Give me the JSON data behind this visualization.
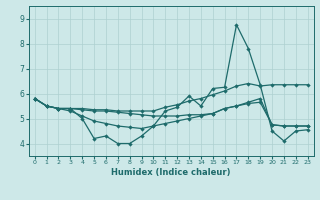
{
  "xlabel": "Humidex (Indice chaleur)",
  "xlim": [
    -0.5,
    23.5
  ],
  "ylim": [
    3.5,
    9.5
  ],
  "yticks": [
    4,
    5,
    6,
    7,
    8,
    9
  ],
  "xticks": [
    0,
    1,
    2,
    3,
    4,
    5,
    6,
    7,
    8,
    9,
    10,
    11,
    12,
    13,
    14,
    15,
    16,
    17,
    18,
    19,
    20,
    21,
    22,
    23
  ],
  "bg_color": "#cde8e8",
  "line_color": "#1e6b6b",
  "grid_color": "#aed0d0",
  "line1_x": [
    0,
    1,
    2,
    3,
    4,
    5,
    6,
    7,
    8,
    9,
    10,
    11,
    12,
    13,
    14,
    15,
    16,
    17,
    18,
    19,
    20,
    21,
    22,
    23
  ],
  "line1_y": [
    5.8,
    5.5,
    5.4,
    5.4,
    5.0,
    4.2,
    4.3,
    4.0,
    4.0,
    4.3,
    4.7,
    5.3,
    5.45,
    5.9,
    5.5,
    6.2,
    6.25,
    8.75,
    7.8,
    6.35,
    4.5,
    4.1,
    4.5,
    4.55
  ],
  "line2_x": [
    0,
    1,
    2,
    3,
    4,
    5,
    6,
    7,
    8,
    9,
    10,
    11,
    12,
    13,
    14,
    15,
    16,
    17,
    18,
    19,
    20,
    21,
    22,
    23
  ],
  "line2_y": [
    5.8,
    5.5,
    5.4,
    5.4,
    5.4,
    5.35,
    5.35,
    5.3,
    5.3,
    5.3,
    5.3,
    5.45,
    5.55,
    5.7,
    5.8,
    5.95,
    6.1,
    6.3,
    6.4,
    6.3,
    6.35,
    6.35,
    6.35,
    6.35
  ],
  "line3_x": [
    0,
    1,
    2,
    3,
    4,
    5,
    6,
    7,
    8,
    9,
    10,
    11,
    12,
    13,
    14,
    15,
    16,
    17,
    18,
    19,
    20,
    21,
    22,
    23
  ],
  "line3_y": [
    5.8,
    5.5,
    5.4,
    5.4,
    5.35,
    5.3,
    5.3,
    5.25,
    5.2,
    5.15,
    5.1,
    5.1,
    5.1,
    5.15,
    5.15,
    5.2,
    5.4,
    5.5,
    5.6,
    5.65,
    4.75,
    4.7,
    4.7,
    4.7
  ],
  "line4_x": [
    0,
    1,
    2,
    3,
    4,
    5,
    6,
    7,
    8,
    9,
    10,
    11,
    12,
    13,
    14,
    15,
    16,
    17,
    18,
    19,
    20,
    21,
    22,
    23
  ],
  "line4_y": [
    5.8,
    5.5,
    5.4,
    5.3,
    5.1,
    4.9,
    4.8,
    4.7,
    4.65,
    4.6,
    4.7,
    4.8,
    4.9,
    5.0,
    5.1,
    5.2,
    5.4,
    5.5,
    5.65,
    5.8,
    4.75,
    4.7,
    4.7,
    4.7
  ]
}
